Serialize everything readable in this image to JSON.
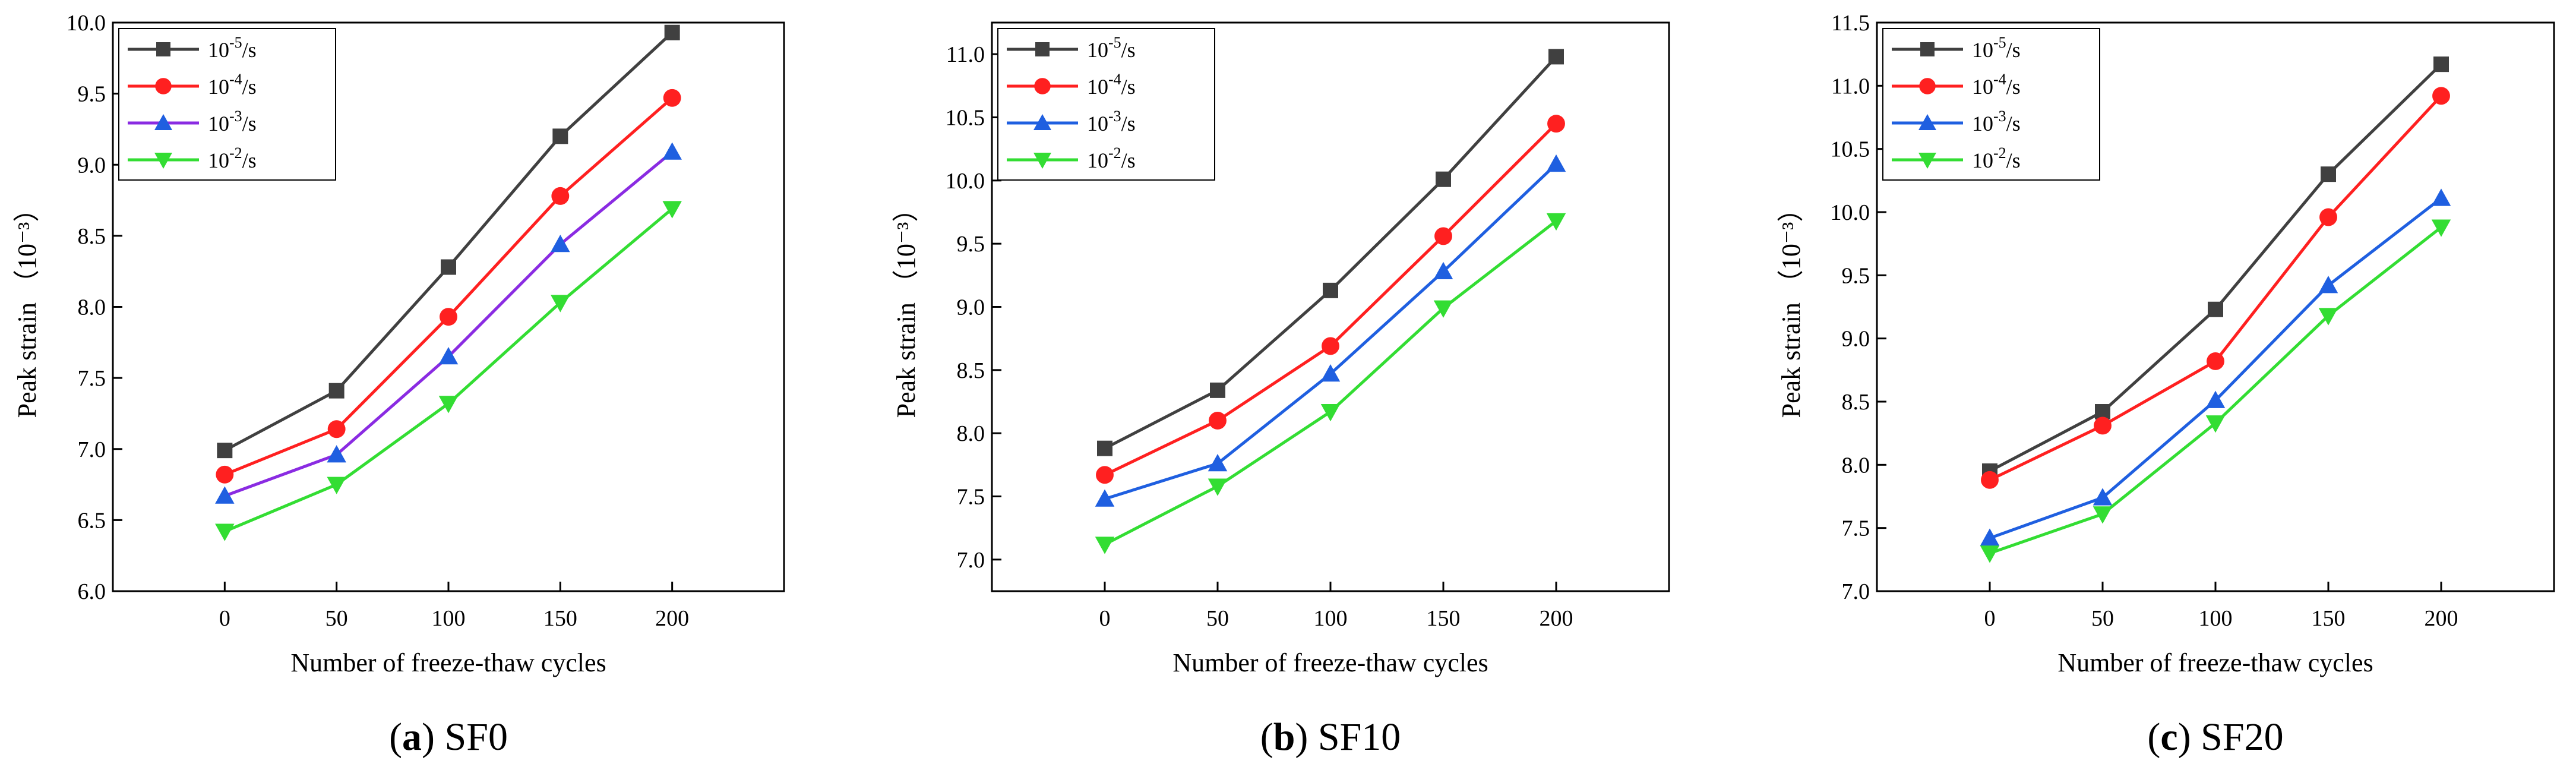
{
  "figure": {
    "panels": [
      "(a) SF0",
      "(b) SF10",
      "(c) SF20"
    ]
  },
  "colors": {
    "10^-5/s": "#404040",
    "10^-4/s": "#ff2020",
    "10^-3/s_a": "#8a2be2",
    "10^-3/s": "#1f5fe0",
    "10^-2/s": "#33dd33"
  },
  "chart_data": [
    {
      "type": "line",
      "caption_letter": "a",
      "caption_text": "SF0",
      "xlabel": "Number of freeze-thaw cycles",
      "ylabel": "Peak strain （10⁻³）",
      "x": [
        0,
        50,
        100,
        150,
        200
      ],
      "xlim": [
        -50,
        250
      ],
      "ylim": [
        6.0,
        10.0
      ],
      "yticks": [
        6.0,
        6.5,
        7.0,
        7.5,
        8.0,
        8.5,
        9.0,
        9.5,
        10.0
      ],
      "legend_position": "top-left",
      "series": [
        {
          "name_base": "10",
          "name_exp": "-5",
          "name_unit": "/s",
          "marker": "square",
          "color": "#404040",
          "values": [
            6.99,
            7.41,
            8.28,
            9.2,
            9.93
          ]
        },
        {
          "name_base": "10",
          "name_exp": "-4",
          "name_unit": "/s",
          "marker": "circle",
          "color": "#ff2020",
          "values": [
            6.82,
            7.14,
            7.93,
            8.78,
            9.47
          ]
        },
        {
          "name_base": "10",
          "name_exp": "-3",
          "name_unit": "/s",
          "marker": "triangle-up",
          "color": "#8a2be2",
          "marker_color": "#1f5fe0",
          "values": [
            6.67,
            6.96,
            7.65,
            8.44,
            9.09
          ]
        },
        {
          "name_base": "10",
          "name_exp": "-2",
          "name_unit": "/s",
          "marker": "triangle-down",
          "color": "#33dd33",
          "values": [
            6.42,
            6.75,
            7.32,
            8.03,
            8.69
          ]
        }
      ]
    },
    {
      "type": "line",
      "caption_letter": "b",
      "caption_text": "SF10",
      "xlabel": "Number of freeze-thaw cycles",
      "ylabel": "Peak strain （10⁻³）",
      "x": [
        0,
        50,
        100,
        150,
        200
      ],
      "xlim": [
        -50,
        250
      ],
      "ylim": [
        6.75,
        11.25
      ],
      "yticks": [
        7.0,
        7.5,
        8.0,
        8.5,
        9.0,
        9.5,
        10.0,
        10.5,
        11.0
      ],
      "legend_position": "top-left",
      "series": [
        {
          "name_base": "10",
          "name_exp": "-5",
          "name_unit": "/s",
          "marker": "square",
          "color": "#404040",
          "values": [
            7.88,
            8.34,
            9.13,
            10.01,
            10.98
          ]
        },
        {
          "name_base": "10",
          "name_exp": "-4",
          "name_unit": "/s",
          "marker": "circle",
          "color": "#ff2020",
          "values": [
            7.67,
            8.1,
            8.69,
            9.56,
            10.45
          ]
        },
        {
          "name_base": "10",
          "name_exp": "-3",
          "name_unit": "/s",
          "marker": "triangle-up",
          "color": "#1f5fe0",
          "values": [
            7.48,
            7.76,
            8.47,
            9.28,
            10.13
          ]
        },
        {
          "name_base": "10",
          "name_exp": "-2",
          "name_unit": "/s",
          "marker": "triangle-down",
          "color": "#33dd33",
          "values": [
            7.12,
            7.58,
            8.17,
            8.99,
            9.68
          ]
        }
      ]
    },
    {
      "type": "line",
      "caption_letter": "c",
      "caption_text": "SF20",
      "xlabel": "Number of freeze-thaw cycles",
      "ylabel": "Peak strain （10⁻³）",
      "x": [
        0,
        50,
        100,
        150,
        200
      ],
      "xlim": [
        -50,
        250
      ],
      "ylim": [
        7.0,
        11.5
      ],
      "yticks": [
        7.0,
        7.5,
        8.0,
        8.5,
        9.0,
        9.5,
        10.0,
        10.5,
        11.0,
        11.5
      ],
      "legend_position": "top-left",
      "series": [
        {
          "name_base": "10",
          "name_exp": "-5",
          "name_unit": "/s",
          "marker": "square",
          "color": "#404040",
          "values": [
            7.95,
            8.42,
            9.23,
            10.3,
            11.17
          ]
        },
        {
          "name_base": "10",
          "name_exp": "-4",
          "name_unit": "/s",
          "marker": "circle",
          "color": "#ff2020",
          "values": [
            7.88,
            8.31,
            8.82,
            9.96,
            10.92
          ]
        },
        {
          "name_base": "10",
          "name_exp": "-3",
          "name_unit": "/s",
          "marker": "triangle-up",
          "color": "#1f5fe0",
          "values": [
            7.42,
            7.74,
            8.51,
            9.42,
            10.11
          ]
        },
        {
          "name_base": "10",
          "name_exp": "-2",
          "name_unit": "/s",
          "marker": "triangle-down",
          "color": "#33dd33",
          "values": [
            7.3,
            7.61,
            8.33,
            9.18,
            9.88
          ]
        }
      ]
    }
  ]
}
